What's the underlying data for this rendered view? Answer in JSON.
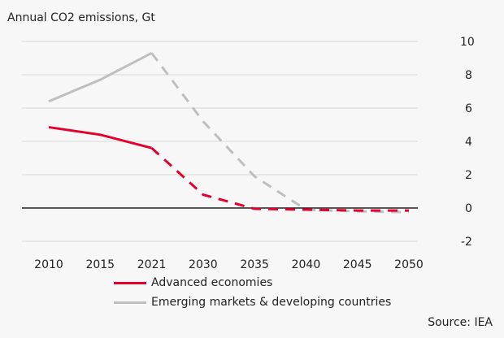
{
  "chart_data": {
    "type": "line",
    "title": "Annual CO2 emissions, Gt",
    "source": "Source: IEA",
    "categories": [
      "2010",
      "2015",
      "2021",
      "2030",
      "2035",
      "2040",
      "2045",
      "2050"
    ],
    "ylim": [
      -2,
      10
    ],
    "yticks": [
      -2,
      0,
      2,
      4,
      6,
      8,
      10
    ],
    "y_axis_side": "right",
    "grid": true,
    "legend_placement": "bottom",
    "projection_style": "dashed from 2021",
    "series": [
      {
        "name": "Advanced economies",
        "color": "#e4002b",
        "values": [
          4.85,
          4.4,
          3.6,
          0.8,
          -0.05,
          -0.1,
          -0.15,
          -0.15
        ]
      },
      {
        "name": "Emerging markets & developing countries",
        "color": "#bfbfbf",
        "values": [
          6.4,
          7.7,
          9.3,
          5.2,
          1.9,
          -0.1,
          -0.2,
          -0.25
        ]
      }
    ]
  }
}
